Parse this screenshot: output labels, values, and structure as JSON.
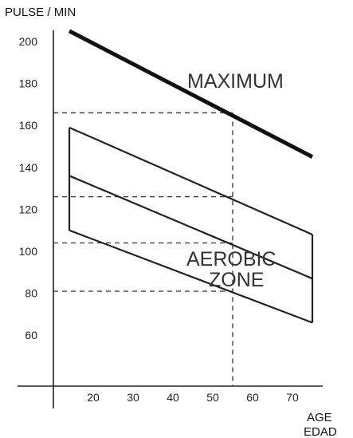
{
  "chart_data": {
    "type": "line",
    "ylabel": "PULSE / MIN",
    "xlabel_lines": [
      "AGE",
      "EDAD"
    ],
    "x_ticks": [
      20,
      30,
      40,
      50,
      60,
      70
    ],
    "y_ticks": [
      60,
      80,
      100,
      120,
      140,
      160,
      180,
      200
    ],
    "xlim": [
      10,
      75
    ],
    "ylim": [
      42,
      207
    ],
    "grid": false,
    "annotations": {
      "maximum": "MAXIMUM",
      "zone_line1": "AEROBIC",
      "zone_line2": "ZONE"
    },
    "series": [
      {
        "key": "maximum",
        "style": "thick",
        "points": [
          [
            14,
            205
          ],
          [
            75,
            145
          ]
        ]
      },
      {
        "key": "zone_upper",
        "style": "thin",
        "points": [
          [
            14,
            159
          ],
          [
            75,
            108
          ]
        ]
      },
      {
        "key": "zone_middle",
        "style": "thin",
        "points": [
          [
            14,
            136
          ],
          [
            75,
            87
          ]
        ]
      },
      {
        "key": "zone_lower",
        "style": "thin",
        "points": [
          [
            14,
            110
          ],
          [
            75,
            66
          ]
        ]
      },
      {
        "key": "zone_left_edge",
        "style": "thin",
        "points": [
          [
            14,
            159
          ],
          [
            14,
            110
          ]
        ]
      },
      {
        "key": "zone_right_edge",
        "style": "thin",
        "points": [
          [
            75,
            108
          ],
          [
            75,
            66
          ]
        ]
      }
    ],
    "reference_lines": {
      "vertical_x": 55,
      "horizontal_y": [
        166,
        126,
        104,
        81
      ]
    }
  }
}
